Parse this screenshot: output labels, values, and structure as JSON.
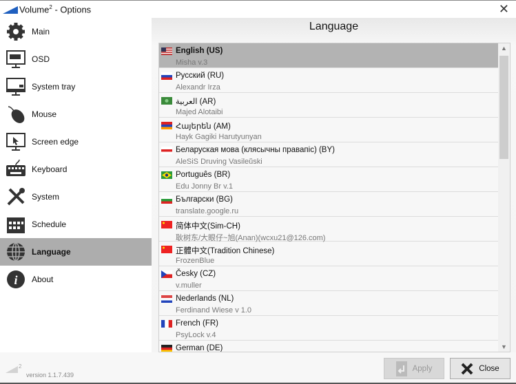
{
  "window": {
    "title": "Volume",
    "title_sup": "2",
    "title_rest": " - Options",
    "close_icon": "close-icon"
  },
  "sidebar": {
    "items": [
      {
        "label": "Main",
        "icon": "gear-icon"
      },
      {
        "label": "OSD",
        "icon": "monitor-osd-icon"
      },
      {
        "label": "System tray",
        "icon": "monitor-tray-icon"
      },
      {
        "label": "Mouse",
        "icon": "mouse-icon"
      },
      {
        "label": "Screen edge",
        "icon": "screen-edge-icon"
      },
      {
        "label": "Keyboard",
        "icon": "keyboard-icon"
      },
      {
        "label": "System",
        "icon": "wrench-screwdriver-icon"
      },
      {
        "label": "Schedule",
        "icon": "calendar-icon"
      },
      {
        "label": "Language",
        "icon": "globe-icon",
        "selected": true
      },
      {
        "label": "About",
        "icon": "info-icon"
      }
    ]
  },
  "main": {
    "heading": "Language",
    "languages": [
      {
        "name": "English (US)",
        "author": "Misha v.3",
        "flag": "us",
        "selected": true
      },
      {
        "name": "Русский (RU)",
        "author": "Alexandr Irza",
        "flag": "ru"
      },
      {
        "name": "العربية (AR)",
        "author": "Majed Alotaibi",
        "flag": "ar"
      },
      {
        "name": "Հայերեն (AM)",
        "author": "Hayk Gagiki Harutyunyan",
        "flag": "am"
      },
      {
        "name": "Беларуская мова (клясычны правапіс) (BY)",
        "author": "AleSiS Druving Vasileŭski",
        "flag": "by"
      },
      {
        "name": "Português (BR)",
        "author": "Edu Jonny Br v.1",
        "flag": "br"
      },
      {
        "name": "Български (BG)",
        "author": "translate.google.ru",
        "flag": "bg"
      },
      {
        "name": "简体中文(Sim-CH)",
        "author": "耿树东/大眼仔~旭(Anan)(wcxu21@126.com)",
        "flag": "cn"
      },
      {
        "name": "正體中文(Tradition Chinese)",
        "author": "FrozenBlue",
        "flag": "cn"
      },
      {
        "name": "Česky (CZ)",
        "author": "v.muller",
        "flag": "cz"
      },
      {
        "name": "Nederlands (NL)",
        "author": "Ferdinand Wiese v 1.0",
        "flag": "nl"
      },
      {
        "name": "French (FR)",
        "author": "PsyLock v.4",
        "flag": "fr"
      },
      {
        "name": "German (DE)",
        "author": "",
        "flag": "de"
      }
    ]
  },
  "footer": {
    "version": "version 1.1.7.439",
    "logo_sup": "2",
    "apply_label": "Apply",
    "close_label": "Close"
  },
  "colors": {
    "selected": "#adadad",
    "accent": "#1f5fbf"
  }
}
